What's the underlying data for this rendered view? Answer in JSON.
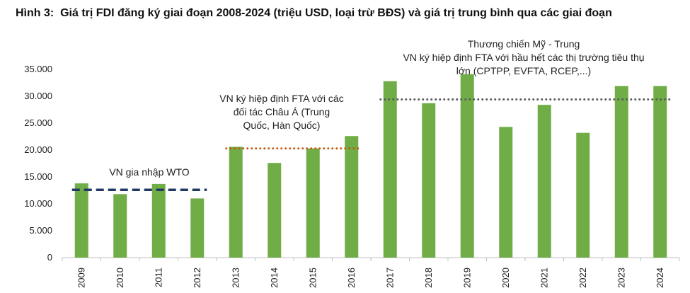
{
  "chart_data": {
    "type": "bar",
    "title_prefix": "Hình 3:",
    "title": "Giá trị FDI đăng ký giai đoạn 2008-2024 (triệu USD, loại trừ BĐS) và giá trị trung bình qua các giai đoạn",
    "categories": [
      "2009",
      "2010",
      "2011",
      "2012",
      "2013",
      "2014",
      "2015",
      "2016",
      "2017",
      "2018",
      "2019",
      "2020",
      "2021",
      "2022",
      "2023",
      "2024"
    ],
    "series": [
      {
        "name": "Giá trị FDI đăng ký",
        "values": [
          13800,
          11800,
          13700,
          11000,
          20600,
          17600,
          20300,
          22600,
          32800,
          28700,
          34100,
          24300,
          28400,
          23200,
          31900,
          31900
        ],
        "color": "#70ad47"
      }
    ],
    "ylim": [
      0,
      35000
    ],
    "yticks": [
      0,
      5000,
      10000,
      15000,
      20000,
      25000,
      30000,
      35000
    ],
    "ytick_labels": [
      "0",
      "5.000",
      "10.000",
      "15.000",
      "20.000",
      "25.000",
      "30.000",
      "35.000"
    ],
    "xlabel": "",
    "ylabel": "",
    "grid": false,
    "averages": [
      {
        "from": "2009",
        "to": "2012",
        "value": 12600,
        "style": "dashed",
        "color": "#1f3864",
        "annotation": [
          "VN gia nhập WTO"
        ]
      },
      {
        "from": "2013",
        "to": "2016",
        "value": 20300,
        "style": "dotted",
        "color": "#c55a11",
        "annotation": [
          "VN ký hiệp định FTA với các",
          "đối tác Châu Á (Trung",
          "Quốc, Hàn Quốc)"
        ]
      },
      {
        "from": "2017",
        "to": "2024",
        "value": 29400,
        "style": "dotted",
        "color": "#595959",
        "annotation": [
          "Thương chiến Mỹ - Trung",
          "VN ký hiệp định FTA với hầu hết các thị trường tiêu thụ",
          "lớn (CPTPP, EVFTA, RCEP,...)"
        ]
      }
    ]
  }
}
